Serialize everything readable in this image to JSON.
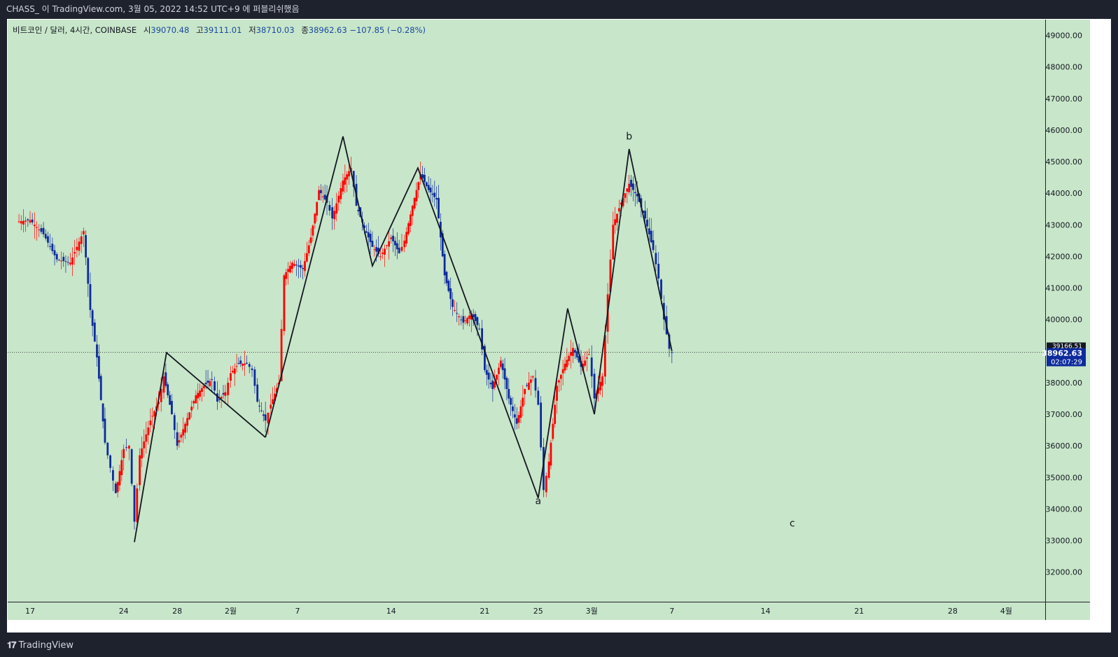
{
  "header": {
    "publish_line": "CHASS_ 이 TradingView.com, 3월 05, 2022 14:52 UTC+9 에 퍼블리쉬했음"
  },
  "legend": {
    "symbol": "비트코인 / 달러, 4시간, COINBASE",
    "open_label": "시",
    "open": "39070.48",
    "high_label": "고",
    "high": "39111.01",
    "low_label": "저",
    "low": "38710.03",
    "close_label": "종",
    "close": "38962.63",
    "change": "−107.85 (−0.28%)"
  },
  "footer": {
    "brand": "TradingView",
    "logo_icon": "tradingview-logo-icon"
  },
  "colors": {
    "background": "#c8e6c9",
    "up": "#ff0000",
    "down": "#0d2b9c",
    "frame": "#1e222d",
    "price_badge": "#0d2b9c",
    "line": "#131722"
  },
  "chart_data": {
    "type": "candlestick",
    "title": "비트코인 / 달러, 4시간, COINBASE",
    "ylim": [
      31200,
      49600
    ],
    "y_ticks": [
      32000,
      33000,
      34000,
      35000,
      36000,
      37000,
      38000,
      39000,
      40000,
      41000,
      42000,
      43000,
      44000,
      45000,
      46000,
      47000,
      48000,
      49000
    ],
    "y_tick_labels": [
      "32000.00",
      "33000.00",
      "34000.00",
      "35000.00",
      "36000.00",
      "37000.00",
      "38000.00",
      "39000.00",
      "40000.00",
      "41000.00",
      "42000.00",
      "43000.00",
      "44000.00",
      "45000.00",
      "46000.00",
      "47000.00",
      "48000.00",
      "49000.00"
    ],
    "x_ticks": [
      {
        "label": "17",
        "day": 17
      },
      {
        "label": "24",
        "day": 24
      },
      {
        "label": "28",
        "day": 28
      },
      {
        "label": "2월",
        "day": 32
      },
      {
        "label": "7",
        "day": 37
      },
      {
        "label": "14",
        "day": 44
      },
      {
        "label": "21",
        "day": 51
      },
      {
        "label": "25",
        "day": 55
      },
      {
        "label": "3월",
        "day": 59
      },
      {
        "label": "7",
        "day": 65
      },
      {
        "label": "14",
        "day": 72
      },
      {
        "label": "21",
        "day": 79
      },
      {
        "label": "28",
        "day": 86
      },
      {
        "label": "4월",
        "day": 90
      }
    ],
    "price_path": [
      [
        16.0,
        43100
      ],
      [
        17.0,
        43150
      ],
      [
        18.0,
        42700
      ],
      [
        19.0,
        41900
      ],
      [
        20.0,
        41800
      ],
      [
        21.0,
        42800
      ],
      [
        21.5,
        40300
      ],
      [
        22.0,
        38800
      ],
      [
        22.6,
        36100
      ],
      [
        23.0,
        35300
      ],
      [
        23.4,
        34500
      ],
      [
        24.0,
        35900
      ],
      [
        24.4,
        36000
      ],
      [
        24.8,
        33600
      ],
      [
        25.2,
        35700
      ],
      [
        26.0,
        36800
      ],
      [
        26.6,
        37400
      ],
      [
        27.0,
        38200
      ],
      [
        27.6,
        37000
      ],
      [
        28.0,
        36000
      ],
      [
        28.6,
        36700
      ],
      [
        29.4,
        37600
      ],
      [
        30.0,
        37900
      ],
      [
        30.6,
        38100
      ],
      [
        31.0,
        37400
      ],
      [
        31.6,
        37700
      ],
      [
        32.0,
        38300
      ],
      [
        32.6,
        38600
      ],
      [
        33.2,
        38600
      ],
      [
        33.6,
        38400
      ],
      [
        34.0,
        37400
      ],
      [
        34.6,
        36800
      ],
      [
        35.0,
        37300
      ],
      [
        35.6,
        38000
      ],
      [
        36.0,
        41400
      ],
      [
        36.6,
        41800
      ],
      [
        37.4,
        41600
      ],
      [
        38.0,
        42600
      ],
      [
        38.6,
        44100
      ],
      [
        39.2,
        43700
      ],
      [
        39.6,
        43200
      ],
      [
        40.4,
        44400
      ],
      [
        41.0,
        44800
      ],
      [
        41.4,
        43600
      ],
      [
        42.0,
        42900
      ],
      [
        42.6,
        42300
      ],
      [
        43.2,
        42000
      ],
      [
        44.0,
        42600
      ],
      [
        44.6,
        42100
      ],
      [
        45.0,
        42500
      ],
      [
        45.6,
        43600
      ],
      [
        46.2,
        44600
      ],
      [
        46.8,
        44100
      ],
      [
        47.4,
        43800
      ],
      [
        48.0,
        41400
      ],
      [
        48.6,
        40400
      ],
      [
        49.4,
        39900
      ],
      [
        50.0,
        40200
      ],
      [
        50.6,
        39700
      ],
      [
        51.0,
        38400
      ],
      [
        51.6,
        37800
      ],
      [
        52.2,
        38700
      ],
      [
        52.8,
        37500
      ],
      [
        53.4,
        36700
      ],
      [
        54.0,
        37800
      ],
      [
        54.6,
        38200
      ],
      [
        55.0,
        37300
      ],
      [
        55.4,
        34600
      ],
      [
        55.8,
        35500
      ],
      [
        56.4,
        37900
      ],
      [
        57.0,
        38600
      ],
      [
        57.6,
        39100
      ],
      [
        58.2,
        38500
      ],
      [
        58.8,
        38900
      ],
      [
        59.2,
        37500
      ],
      [
        59.8,
        38200
      ],
      [
        60.2,
        40800
      ],
      [
        60.6,
        43000
      ],
      [
        61.2,
        43700
      ],
      [
        61.8,
        44300
      ],
      [
        62.4,
        43900
      ],
      [
        63.0,
        43200
      ],
      [
        63.6,
        42200
      ],
      [
        64.0,
        41300
      ],
      [
        64.4,
        40000
      ],
      [
        64.8,
        39070
      ],
      [
        65.0,
        38962.63
      ]
    ],
    "wave_lines": [
      [
        [
          24.8,
          32950
        ],
        [
          27.2,
          38950
        ],
        [
          34.6,
          36270
        ]
      ],
      [
        [
          34.6,
          36270
        ],
        [
          40.4,
          45800
        ],
        [
          42.6,
          41700
        ],
        [
          46.0,
          44800
        ],
        [
          55.0,
          34350
        ],
        [
          57.2,
          40350
        ],
        [
          59.2,
          37000
        ],
        [
          61.8,
          45400
        ],
        [
          65.0,
          39000
        ]
      ]
    ],
    "wave_labels": [
      {
        "text": "b",
        "day": 61.8,
        "price": 45700
      },
      {
        "text": "a",
        "day": 55.0,
        "price": 34150
      },
      {
        "text": "c",
        "day": 74.0,
        "price": 33450
      }
    ],
    "last_price": "38962.63",
    "countdown": "02:07:29",
    "prev_price_label": "39166.51"
  }
}
